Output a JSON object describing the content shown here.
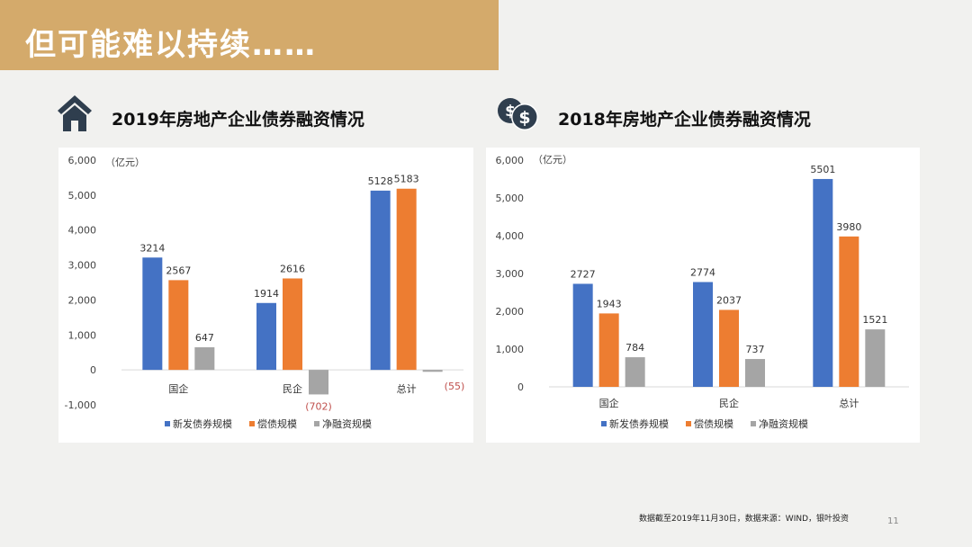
{
  "page": {
    "title": "但可能难以持续……",
    "footnote": "数据截至2019年11月30日，数据来源：WIND，银叶投资",
    "page_number": "11"
  },
  "sections": [
    {
      "title": "2019年房地产企业债券融资情况",
      "icon": "house-icon"
    },
    {
      "title": "2018年房地产企业债券融资情况",
      "icon": "dollar-coins-icon"
    }
  ],
  "colors": {
    "series": [
      "#4472c4",
      "#ed7d31",
      "#a5a5a5"
    ],
    "negative_label": "#c0504d"
  },
  "chart_data": [
    {
      "type": "bar",
      "unit_label": "（亿元）",
      "categories": [
        "国企",
        "民企",
        "总计"
      ],
      "series": [
        {
          "name": "新发债券规模",
          "values": [
            3214,
            1914,
            5128
          ]
        },
        {
          "name": "偿债规模",
          "values": [
            2567,
            2616,
            5183
          ]
        },
        {
          "name": "净融资规模",
          "values": [
            647,
            -702,
            -55
          ]
        }
      ],
      "data_labels": [
        [
          "3214",
          "1914",
          "5128"
        ],
        [
          "2567",
          "2616",
          "5183"
        ],
        [
          "647",
          "(702)",
          "(55)"
        ]
      ],
      "ylim": [
        -1000,
        6000
      ],
      "yticks": [
        6000,
        5000,
        4000,
        3000,
        2000,
        1000,
        0,
        -1000
      ],
      "ytick_labels": [
        "6,000",
        "5,000",
        "4,000",
        "3,000",
        "2,000",
        "1,000",
        "0",
        "-1,000"
      ],
      "grid": false,
      "legend": "bottom"
    },
    {
      "type": "bar",
      "unit_label": "（亿元）",
      "categories": [
        "国企",
        "民企",
        "总计"
      ],
      "series": [
        {
          "name": "新发债券规模",
          "values": [
            2727,
            2774,
            5501
          ]
        },
        {
          "name": "偿债规模",
          "values": [
            1943,
            2037,
            3980
          ]
        },
        {
          "name": "净融资规模",
          "values": [
            784,
            737,
            1521
          ]
        }
      ],
      "data_labels": [
        [
          "2727",
          "2774",
          "5501"
        ],
        [
          "1943",
          "2037",
          "3980"
        ],
        [
          "784",
          "737",
          "1521"
        ]
      ],
      "ylim": [
        0,
        6000
      ],
      "yticks": [
        6000,
        5000,
        4000,
        3000,
        2000,
        1000,
        0
      ],
      "ytick_labels": [
        "6,000",
        "5,000",
        "4,000",
        "3,000",
        "2,000",
        "1,000",
        "0"
      ],
      "grid": false,
      "legend": "bottom"
    }
  ]
}
